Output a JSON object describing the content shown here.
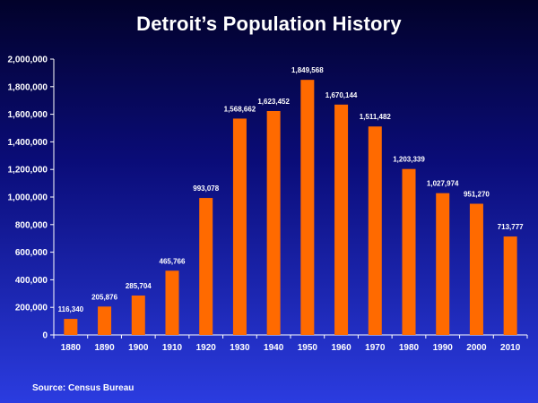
{
  "title": "Detroit’s Population History",
  "source": "Source:  Census Bureau",
  "chart_data": {
    "type": "bar",
    "title": "Detroit’s Population History",
    "xlabel": "",
    "ylabel": "",
    "categories": [
      "1880",
      "1890",
      "1900",
      "1910",
      "1920",
      "1930",
      "1940",
      "1950",
      "1960",
      "1970",
      "1980",
      "1990",
      "2000",
      "2010"
    ],
    "values": [
      116340,
      205876,
      285704,
      465766,
      993078,
      1568662,
      1623452,
      1849568,
      1670144,
      1511482,
      1203339,
      1027974,
      951270,
      713777
    ],
    "data_labels": [
      "116,340",
      "205,876",
      "285,704",
      "465,766",
      "993,078",
      "1,568,662",
      "1,623,452",
      "1,849,568",
      "1,670,144",
      "1,511,482",
      "1,203,339",
      "1,027,974",
      "951,270",
      "713,777"
    ],
    "ylim": [
      0,
      2000000
    ],
    "yticks": [
      0,
      200000,
      400000,
      600000,
      800000,
      1000000,
      1200000,
      1400000,
      1600000,
      1800000,
      2000000
    ],
    "ytick_labels": [
      "0",
      "200,000",
      "400,000",
      "600,000",
      "800,000",
      "1,000,000",
      "1,200,000",
      "1,400,000",
      "1,600,000",
      "1,800,000",
      "2,000,000"
    ],
    "grid": false,
    "legend": "none",
    "colors": {
      "bar": "#ff6a00",
      "axis": "#ffffff",
      "text": "#ffffff"
    }
  }
}
